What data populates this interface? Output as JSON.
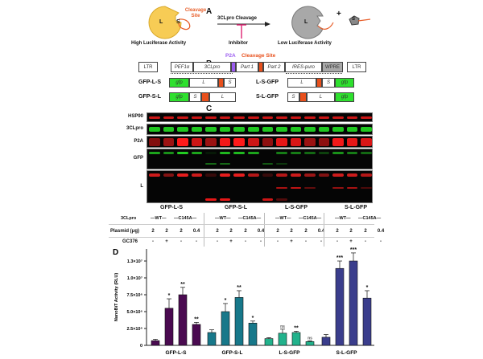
{
  "panel_a": {
    "label": "A",
    "substrate_L": "L",
    "substrate_S": "S",
    "cleavage_site": "Cleavage Site",
    "arrow_label": "3CLpro Cleavage",
    "inhibitor": "Inhibitor",
    "high": "High Luciferase Activity",
    "low": "Low Luciferase Activity",
    "plus": "+",
    "product_L": "L",
    "product_S": "S",
    "colors": {
      "luciferase": "#f7cc55",
      "cleaved": "#a8a8a8",
      "linker": "#e8602c",
      "inhibitor": "#e0307a"
    }
  },
  "panel_b": {
    "label": "B",
    "p2a": "P2A",
    "cleavage_site": "Cleavage Site",
    "construct": [
      "LTR",
      "PEF1α",
      "3CLpro",
      "",
      "Part 1",
      "",
      "Part 2",
      "IRES-puro",
      "WPRE",
      "LTR"
    ],
    "variants": [
      {
        "name": "GFP-L-S",
        "parts": [
          "gfp",
          "L",
          "",
          "S"
        ]
      },
      {
        "name": "GFP-S-L",
        "parts": [
          "gfp",
          "S",
          "",
          "L"
        ]
      },
      {
        "name": "L-S-GFP",
        "parts": [
          "L",
          "",
          "S",
          "gfp"
        ]
      },
      {
        "name": "S-L-GFP",
        "parts": [
          "S",
          "",
          "L",
          "gfp"
        ]
      }
    ],
    "colors": {
      "gfp": "#2ee02e",
      "site": "#e8501c",
      "p2a": "#9b5cf0",
      "wpre": "#a9a9a9"
    }
  },
  "panel_c": {
    "label": "C",
    "blots": [
      "HSP90",
      "3CLpro",
      "P2A",
      "GFP",
      "L"
    ],
    "groups": [
      "GFP-L-S",
      "GFP-S-L",
      "L-S-GFP",
      "S-L-GFP"
    ],
    "row_3cl_label": "3CLpro",
    "wt": "—WT—",
    "c145a": "—C145A—",
    "plasmid_label": "Plasmid (μg)",
    "plasmid": [
      "2",
      "2",
      "2",
      "0.4"
    ],
    "gc_label": "GC376",
    "gc376": [
      "-",
      "+",
      "-",
      "-"
    ]
  },
  "chart_data": {
    "type": "bar",
    "label": "D",
    "ylabel": "NanoBiT Activity (RLU)",
    "ylim": [
      0,
      13000000
    ],
    "yticks": [
      0,
      2500000,
      5000000,
      7500000,
      10000000,
      12500000
    ],
    "ytick_labels": [
      "0",
      "2.5×10⁶",
      "5.0×10⁶",
      "7.5×10⁶",
      "1.0×10⁷",
      "1.3×10⁷"
    ],
    "categories": [
      "GFP-L-S",
      "GFP-S-L",
      "L-S-GFP",
      "S-L-GFP"
    ],
    "colors": [
      "#4a0a50",
      "#17788a",
      "#22b28c",
      "#3a3d8c"
    ],
    "values": [
      [
        700000,
        5500000,
        7500000,
        3100000
      ],
      [
        1900000,
        5000000,
        7100000,
        3300000
      ],
      [
        1000000,
        1800000,
        1900000,
        560000
      ],
      [
        1200000,
        11400000,
        12500000,
        7000000
      ]
    ],
    "error_tops": [
      [
        900000,
        6900000,
        8600000,
        3400000
      ],
      [
        2300000,
        6200000,
        8100000,
        3600000
      ],
      [
        1150000,
        2400000,
        2100000,
        670000
      ],
      [
        1600000,
        12500000,
        13700000,
        8100000
      ]
    ],
    "significance": [
      [
        "",
        "*",
        "**",
        "**"
      ],
      [
        "",
        "*",
        "**",
        "*"
      ],
      [
        "",
        "ns",
        "**",
        "ns"
      ],
      [
        "",
        "***",
        "***",
        "*"
      ]
    ]
  }
}
